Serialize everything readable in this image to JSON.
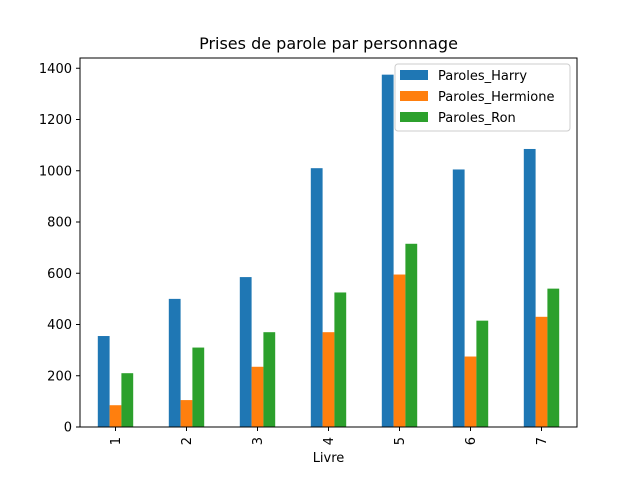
{
  "chart_data": {
    "type": "bar",
    "title": "Prises de parole par personnage",
    "xlabel": "Livre",
    "ylabel": "",
    "categories": [
      "1",
      "2",
      "3",
      "4",
      "5",
      "6",
      "7"
    ],
    "series": [
      {
        "name": "Paroles_Harry",
        "color": "#1f77b4",
        "values": [
          355,
          500,
          585,
          1010,
          1375,
          1005,
          1085
        ]
      },
      {
        "name": "Paroles_Hermione",
        "color": "#ff7f0e",
        "values": [
          85,
          105,
          235,
          370,
          595,
          275,
          430
        ]
      },
      {
        "name": "Paroles_Ron",
        "color": "#2ca02c",
        "values": [
          210,
          310,
          370,
          525,
          715,
          415,
          540
        ]
      }
    ],
    "ylim": [
      0,
      1400
    ],
    "yticks": [
      0,
      200,
      400,
      600,
      800,
      1000,
      1200,
      1400
    ],
    "grid": false,
    "legend_position": "top-right"
  }
}
